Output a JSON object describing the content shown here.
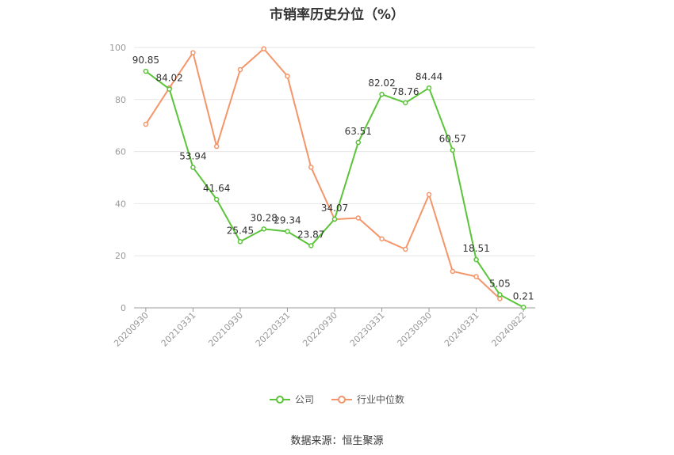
{
  "chart_data": {
    "type": "line",
    "title": "市销率历史分位（%）",
    "ylim": [
      0,
      100
    ],
    "yticks": [
      0,
      20,
      40,
      60,
      80,
      100
    ],
    "x": [
      "20200930",
      "20201231",
      "20210331",
      "20210630",
      "20210930",
      "20211231",
      "20220331",
      "20220630",
      "20220930",
      "20221231",
      "20230331",
      "20230630",
      "20230930",
      "20231231",
      "20240331",
      "20240630",
      "20240822"
    ],
    "x_tick_labels": [
      "20200930",
      "20210331",
      "20210930",
      "20220331",
      "20220930",
      "20230331",
      "20230930",
      "20240331",
      "20240822"
    ],
    "grid": true,
    "legend_position": "bottom",
    "series": [
      {
        "name": "公司",
        "color": "#5bc43a",
        "values": [
          90.85,
          84.02,
          53.94,
          41.64,
          25.45,
          30.28,
          29.34,
          23.87,
          34.07,
          63.51,
          82.02,
          78.76,
          84.44,
          60.57,
          18.51,
          5.05,
          0.21
        ],
        "labels": [
          "90.85",
          "84.02",
          "53.94",
          "41.64",
          "25.45",
          "30.28",
          "29.34",
          "23.87",
          "34.07",
          "63.51",
          "82.02",
          "78.76",
          "84.44",
          "60.57",
          "18.51",
          "5.05",
          "0.21"
        ]
      },
      {
        "name": "行业中位数",
        "color": "#f4956a",
        "values": [
          70.5,
          84.5,
          98.0,
          62.0,
          91.5,
          99.5,
          89.0,
          54.0,
          34.0,
          34.5,
          26.5,
          22.5,
          43.5,
          14.0,
          12.0,
          3.5,
          null
        ]
      }
    ]
  },
  "source_text": "数据来源：恒生聚源"
}
